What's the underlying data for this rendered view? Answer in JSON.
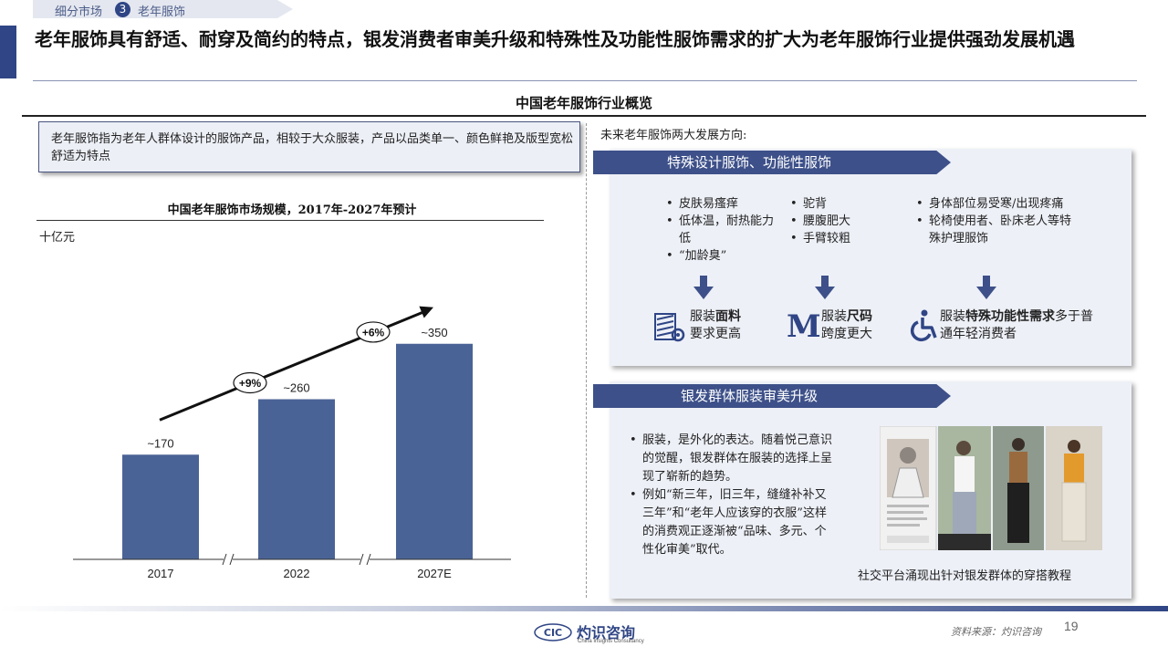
{
  "breadcrumb": {
    "section": "细分市场",
    "number": "3",
    "topic": "老年服饰"
  },
  "header": {
    "title": "老年服饰具有舒适、耐穿及简约的特点，银发消费者审美升级和特殊性及功能性服饰需求的扩大为老年服饰行业提供强劲发展机遇"
  },
  "overview": {
    "title": "中国老年服饰行业概览"
  },
  "definition": "老年服饰指为老年人群体设计的服饰产品，相较于大众服装，产品以品类单一、颜色鲜艳及版型宽松舒适为特点",
  "chart_data": {
    "type": "bar",
    "title": "中国老年服饰市场规模，2017年-2027年预计",
    "unit": "十亿元",
    "categories": [
      "2017",
      "2022",
      "2027E"
    ],
    "values": [
      170,
      260,
      350
    ],
    "value_labels": [
      "~170",
      "~260",
      "~350"
    ],
    "growth_labels": [
      "+9%",
      "+6%"
    ],
    "ylim": [
      0,
      400
    ],
    "bar_color": "#4a6396",
    "axis_breaks": [
      "2017-2022",
      "2022-2027E"
    ]
  },
  "future": {
    "label": "未来老年服饰两大发展方向:",
    "direction1": {
      "title": "特殊设计服饰、功能性服饰",
      "col1": [
        "皮肤易瘙痒",
        "低体温，耐热能力低",
        "“加龄臭”"
      ],
      "col2": [
        "驼背",
        "腰腹肥大",
        "手臂较粗"
      ],
      "col3": [
        "身体部位易受寒/出现疼痛",
        "轮椅使用者、卧床老人等特殊护理服饰"
      ],
      "feat1": {
        "pre": "服装",
        "bold": "面料",
        "post": "要求更高",
        "icon": "fabric-roll-icon"
      },
      "feat2": {
        "pre": "服装",
        "bold": "尺码",
        "post": "跨度更大",
        "icon": "size-m-icon",
        "glyph": "M"
      },
      "feat3": {
        "pre": "服装",
        "bold": "特殊功能性需求",
        "post": "多于普通年轻消费者",
        "icon": "wheelchair-icon"
      }
    },
    "direction2": {
      "title": "银发群体服装审美升级",
      "bullets": [
        "服装，是外化的表达。随着悦己意识的觉醒，银发群体在服装的选择上呈现了崭新的趋势。",
        "例如“新三年，旧三年，缝缝补补又三年”和“老年人应该穿的衣服”这样的消费观正逐渐被“品味、多元、个性化审美”取代。"
      ],
      "photo_caption": "社交平台涌现出针对银发群体的穿搭教程"
    }
  },
  "footer": {
    "logo_mark": "CIC",
    "logo_cn": "灼识咨询",
    "logo_en": "China Insights Consultancy",
    "source": "资料来源：灼识咨询",
    "page": "19"
  },
  "colors": {
    "primary": "#2f4585",
    "panel": "#edf0f7",
    "bar": "#4a6396"
  }
}
